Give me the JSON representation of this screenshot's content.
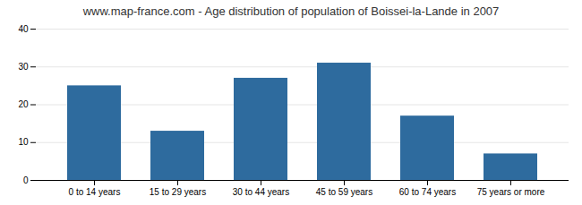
{
  "chart_data": {
    "type": "bar",
    "title": "www.map-france.com - Age distribution of population of Boissei-la-Lande in 2007",
    "categories": [
      "0 to 14 years",
      "15 to 29 years",
      "30 to 44 years",
      "45 to 59 years",
      "60 to 74 years",
      "75 years or more"
    ],
    "values": [
      25,
      13,
      27,
      31,
      17,
      7
    ],
    "color": "#2e6b9e",
    "ylim": [
      0,
      40
    ],
    "yticks": [
      0,
      10,
      20,
      30,
      40
    ],
    "grid": true
  }
}
